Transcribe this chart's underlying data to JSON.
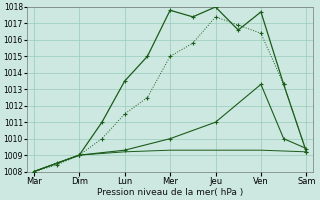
{
  "background_color": "#cce8e0",
  "grid_color": "#99ccbb",
  "line_color": "#1a5c1a",
  "x_labels": [
    "Mar",
    "Dim",
    "Lun",
    "Mer",
    "Jeu",
    "Ven",
    "Sam"
  ],
  "x_ticks": [
    0,
    1,
    2,
    3,
    4,
    5,
    6
  ],
  "ylim": [
    1008,
    1018
  ],
  "yticks": [
    1008,
    1009,
    1010,
    1011,
    1012,
    1013,
    1014,
    1015,
    1016,
    1017,
    1018
  ],
  "xlabel": "Pression niveau de la mer( hPa )",
  "series": {
    "line_main": {
      "x": [
        0,
        0.5,
        1.0,
        1.5,
        2.0,
        2.5,
        3.0,
        3.5,
        4.0,
        4.5,
        5.0,
        5.5,
        6.0
      ],
      "y": [
        1008.0,
        1008.5,
        1009.0,
        1011.0,
        1013.5,
        1015.0,
        1017.8,
        1017.4,
        1018.0,
        1016.6,
        1017.7,
        1013.3,
        1009.2
      ],
      "linestyle": "-",
      "marker": "+"
    },
    "line_dotted": {
      "x": [
        0,
        0.5,
        1.0,
        1.5,
        2.0,
        2.5,
        3.0,
        3.5,
        4.0,
        4.5,
        5.0,
        5.5,
        6.0
      ],
      "y": [
        1008.0,
        1008.4,
        1009.0,
        1010.0,
        1011.5,
        1012.5,
        1015.0,
        1015.8,
        1017.4,
        1016.9,
        1016.4,
        1013.3,
        1009.2
      ],
      "linestyle": "dotted",
      "marker": "+"
    },
    "line_medium": {
      "x": [
        0,
        1.0,
        2.0,
        3.0,
        4.0,
        5.0,
        5.5,
        6.0
      ],
      "y": [
        1008.0,
        1009.0,
        1009.3,
        1010.0,
        1011.0,
        1013.3,
        1010.0,
        1009.4
      ],
      "linestyle": "-",
      "marker": "+"
    },
    "line_flat": {
      "x": [
        0,
        1.0,
        2.0,
        3.0,
        4.0,
        5.0,
        6.0
      ],
      "y": [
        1008.0,
        1009.0,
        1009.2,
        1009.3,
        1009.3,
        1009.3,
        1009.2
      ],
      "linestyle": "-",
      "marker": null
    }
  }
}
